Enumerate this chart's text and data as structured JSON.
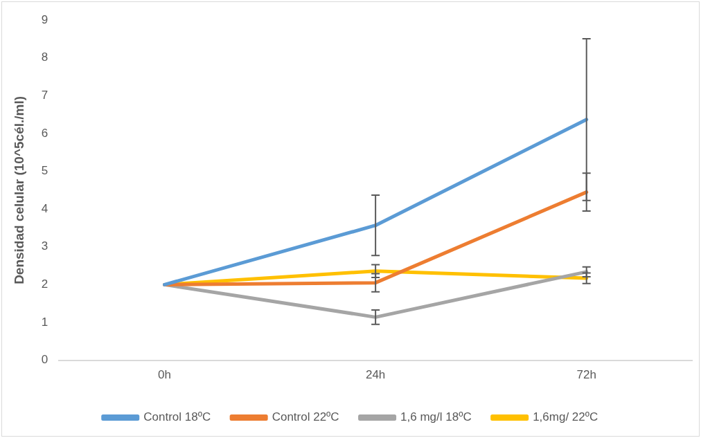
{
  "chart_data": {
    "type": "line",
    "ylabel": "Densidad celular (10^5cél./ml)",
    "categories": [
      "0h",
      "24h",
      "72h"
    ],
    "ylim": [
      0,
      9
    ],
    "yticks": [
      0,
      1,
      2,
      3,
      4,
      5,
      6,
      7,
      8,
      9
    ],
    "grid": false,
    "legend": "bottom",
    "line_style": "solid",
    "series": [
      {
        "name": "Control 18ºC",
        "color": "#5b9bd5",
        "values": [
          2,
          3.57,
          6.37
        ],
        "errors": [
          null,
          0.8,
          2.14
        ]
      },
      {
        "name": "Control 22ºC",
        "color": "#ed7d31",
        "values": [
          2,
          2.05,
          4.45
        ],
        "errors": [
          null,
          0.24,
          0.5
        ]
      },
      {
        "name": "1,6 mg/l 18ºC",
        "color": "#a5a5a5",
        "values": [
          2,
          1.14,
          2.34
        ],
        "errors": [
          null,
          0.19,
          0.13
        ]
      },
      {
        "name": "1,6mg/ 22ºC",
        "color": "#ffc000",
        "values": [
          2,
          2.36,
          2.17
        ],
        "errors": [
          null,
          0.17,
          0.14
        ]
      }
    ]
  }
}
